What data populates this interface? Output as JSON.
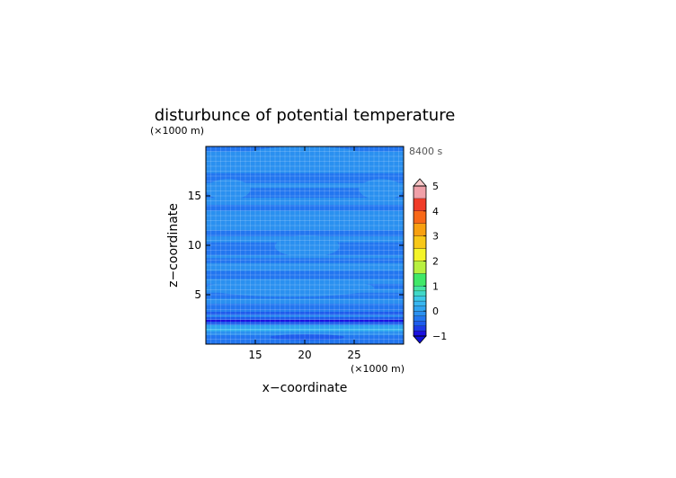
{
  "chart_data": {
    "type": "heatmap",
    "title": "disturbunce of potential temperature",
    "time_label": "8400 s",
    "xlabel": "x−coordinate",
    "ylabel": "z−coordinate",
    "x_unit": "(×1000 m)",
    "y_unit": "(×1000 m)",
    "xlim": [
      10,
      30
    ],
    "ylim": [
      0,
      20
    ],
    "x_ticks": [
      15,
      20,
      25
    ],
    "y_ticks": [
      5,
      10,
      15
    ],
    "grid": true,
    "colorbar": {
      "range": [
        -1,
        5
      ],
      "tick_values": [
        -1,
        0,
        1,
        2,
        3,
        4,
        5
      ],
      "tick_labels": [
        "−1",
        "0",
        "1",
        "2",
        "3",
        "4",
        "5"
      ],
      "levels": [
        {
          "from": -1.0,
          "to": -0.8,
          "color": "#1c10e0"
        },
        {
          "from": -0.8,
          "to": -0.6,
          "color": "#1c3ae8"
        },
        {
          "from": -0.6,
          "to": -0.4,
          "color": "#1e5ced"
        },
        {
          "from": -0.4,
          "to": -0.2,
          "color": "#2276f0"
        },
        {
          "from": -0.2,
          "to": 0.0,
          "color": "#2a90f0"
        },
        {
          "from": 0.0,
          "to": 0.2,
          "color": "#30a4f0"
        },
        {
          "from": 0.2,
          "to": 0.4,
          "color": "#38b6f0"
        },
        {
          "from": 0.4,
          "to": 0.6,
          "color": "#3cc8e8"
        },
        {
          "from": 0.6,
          "to": 0.8,
          "color": "#40d8c8"
        },
        {
          "from": 0.8,
          "to": 1.0,
          "color": "#44e4a4"
        },
        {
          "from": 1.0,
          "to": 1.5,
          "color": "#40e868"
        },
        {
          "from": 1.5,
          "to": 2.0,
          "color": "#b8f040"
        },
        {
          "from": 2.0,
          "to": 2.5,
          "color": "#f4f428"
        },
        {
          "from": 2.5,
          "to": 3.0,
          "color": "#f8c818"
        },
        {
          "from": 3.0,
          "to": 3.5,
          "color": "#f8a010"
        },
        {
          "from": 3.5,
          "to": 4.0,
          "color": "#f86818"
        },
        {
          "from": 4.0,
          "to": 4.5,
          "color": "#f03c28"
        },
        {
          "from": 4.5,
          "to": 5.0,
          "color": "#f0a0a8"
        }
      ],
      "under_color": "#1010d8",
      "over_color": "#f8c8c8"
    },
    "field": {
      "base_color": "#2a90f0",
      "bands": [
        {
          "z": [
            19.5,
            20.0
          ],
          "color": "#2276f0"
        },
        {
          "z": [
            16.3,
            17.3
          ],
          "color": "#2276f0"
        },
        {
          "z": [
            14.8,
            15.8
          ],
          "color": "#2276f0"
        },
        {
          "z": [
            13.5,
            14.1
          ],
          "color": "#2276f0"
        },
        {
          "z": [
            10.9,
            11.5
          ],
          "color": "#2276f0"
        },
        {
          "z": [
            9.0,
            10.3
          ],
          "color": "#2276f0"
        },
        {
          "z": [
            8.2,
            8.7
          ],
          "color": "#2276f0"
        },
        {
          "z": [
            6.6,
            7.4
          ],
          "color": "#2276f0"
        },
        {
          "z": [
            5.6,
            6.1
          ],
          "color": "#2276f0"
        },
        {
          "z": [
            4.6,
            5.2
          ],
          "color": "#2276f0"
        },
        {
          "z": [
            3.4,
            4.1
          ],
          "color": "#2276f0"
        },
        {
          "z": [
            2.9,
            3.3
          ],
          "color": "#1e5ced"
        },
        {
          "z": [
            2.75,
            2.95
          ],
          "color": "#2a90f0"
        },
        {
          "z": [
            2.4,
            2.75
          ],
          "color": "#1e5ced"
        },
        {
          "z": [
            2.25,
            2.45
          ],
          "color": "#1c10e0"
        },
        {
          "z": [
            1.95,
            2.25
          ],
          "color": "#1e5ced"
        },
        {
          "z": [
            1.55,
            1.95
          ],
          "color": "#30a4f0"
        },
        {
          "z": [
            1.3,
            1.55
          ],
          "color": "#38b6f0"
        },
        {
          "z": [
            0.9,
            1.3
          ],
          "color": "#2a90f0"
        },
        {
          "z": [
            0.0,
            0.9
          ],
          "color": "#2276f0"
        }
      ],
      "lobes": [
        {
          "x": [
            14.0,
            26.0
          ],
          "z": [
            18.2,
            20.0
          ],
          "color": "#2a90f0"
        },
        {
          "x": [
            10.0,
            14.5
          ],
          "z": [
            14.6,
            16.7
          ],
          "color": "#2a90f0"
        },
        {
          "x": [
            25.5,
            30.0
          ],
          "z": [
            14.6,
            16.7
          ],
          "color": "#2a90f0"
        },
        {
          "x": [
            17.0,
            23.5
          ],
          "z": [
            8.8,
            11.0
          ],
          "color": "#2a90f0"
        },
        {
          "x": [
            10.0,
            27.0
          ],
          "z": [
            4.8,
            6.6
          ],
          "color": "#2a90f0"
        },
        {
          "x": [
            16.5,
            24.0
          ],
          "z": [
            0.4,
            1.0
          ],
          "color": "#1e5ced"
        }
      ]
    }
  }
}
